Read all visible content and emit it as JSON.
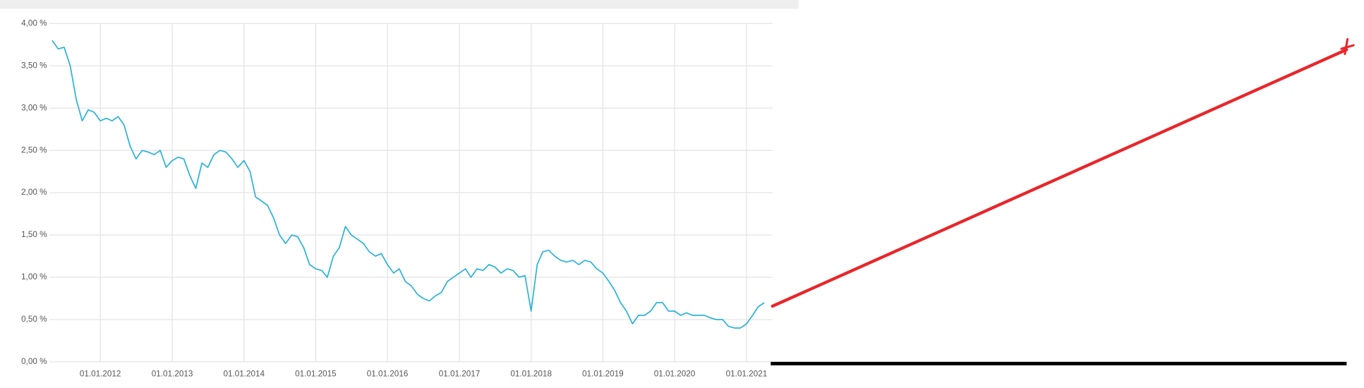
{
  "chart_data": {
    "type": "line",
    "x": [
      "2011-05-01",
      "2011-06-01",
      "2011-07-01",
      "2011-08-01",
      "2011-09-01",
      "2011-10-01",
      "2011-11-01",
      "2011-12-01",
      "2012-01-01",
      "2012-02-01",
      "2012-03-01",
      "2012-04-01",
      "2012-05-01",
      "2012-06-01",
      "2012-07-01",
      "2012-08-01",
      "2012-09-01",
      "2012-10-01",
      "2012-11-01",
      "2012-12-01",
      "2013-01-01",
      "2013-02-01",
      "2013-03-01",
      "2013-04-01",
      "2013-05-01",
      "2013-06-01",
      "2013-07-01",
      "2013-08-01",
      "2013-09-01",
      "2013-10-01",
      "2013-11-01",
      "2013-12-01",
      "2014-01-01",
      "2014-02-01",
      "2014-03-01",
      "2014-04-01",
      "2014-05-01",
      "2014-06-01",
      "2014-07-01",
      "2014-08-01",
      "2014-09-01",
      "2014-10-01",
      "2014-11-01",
      "2014-12-01",
      "2015-01-01",
      "2015-02-01",
      "2015-03-01",
      "2015-04-01",
      "2015-05-01",
      "2015-06-01",
      "2015-07-01",
      "2015-08-01",
      "2015-09-01",
      "2015-10-01",
      "2015-11-01",
      "2015-12-01",
      "2016-01-01",
      "2016-02-01",
      "2016-03-01",
      "2016-04-01",
      "2016-05-01",
      "2016-06-01",
      "2016-07-01",
      "2016-08-01",
      "2016-09-01",
      "2016-10-01",
      "2016-11-01",
      "2016-12-01",
      "2017-01-01",
      "2017-02-01",
      "2017-03-01",
      "2017-04-01",
      "2017-05-01",
      "2017-06-01",
      "2017-07-01",
      "2017-08-01",
      "2017-09-01",
      "2017-10-01",
      "2017-11-01",
      "2017-12-01",
      "2018-01-01",
      "2018-02-01",
      "2018-03-01",
      "2018-04-01",
      "2018-05-01",
      "2018-06-01",
      "2018-07-01",
      "2018-08-01",
      "2018-09-01",
      "2018-10-01",
      "2018-11-01",
      "2018-12-01",
      "2019-01-01",
      "2019-02-01",
      "2019-03-01",
      "2019-04-01",
      "2019-05-01",
      "2019-06-01",
      "2019-07-01",
      "2019-08-01",
      "2019-09-01",
      "2019-10-01",
      "2019-11-01",
      "2019-12-01",
      "2020-01-01",
      "2020-02-01",
      "2020-03-01",
      "2020-04-01",
      "2020-05-01",
      "2020-06-01",
      "2020-07-01",
      "2020-08-01",
      "2020-09-01",
      "2020-10-01",
      "2020-11-01",
      "2020-12-01",
      "2021-01-01",
      "2021-02-01",
      "2021-03-01",
      "2021-04-01"
    ],
    "series": [
      {
        "color": "#2bb3d9",
        "values": [
          3.8,
          3.7,
          3.72,
          3.5,
          3.1,
          2.85,
          2.98,
          2.95,
          2.85,
          2.88,
          2.85,
          2.9,
          2.8,
          2.55,
          2.4,
          2.5,
          2.48,
          2.45,
          2.5,
          2.3,
          2.38,
          2.42,
          2.4,
          2.2,
          2.05,
          2.35,
          2.3,
          2.45,
          2.5,
          2.48,
          2.4,
          2.3,
          2.38,
          2.25,
          1.95,
          1.9,
          1.85,
          1.7,
          1.5,
          1.4,
          1.5,
          1.48,
          1.35,
          1.15,
          1.1,
          1.08,
          1.0,
          1.25,
          1.35,
          1.6,
          1.5,
          1.45,
          1.4,
          1.3,
          1.25,
          1.28,
          1.15,
          1.05,
          1.1,
          0.95,
          0.9,
          0.8,
          0.75,
          0.72,
          0.78,
          0.82,
          0.95,
          1.0,
          1.05,
          1.1,
          1.0,
          1.1,
          1.08,
          1.15,
          1.12,
          1.05,
          1.1,
          1.08,
          1.0,
          1.02,
          0.6,
          1.15,
          1.3,
          1.32,
          1.25,
          1.2,
          1.18,
          1.2,
          1.15,
          1.2,
          1.18,
          1.1,
          1.05,
          0.95,
          0.85,
          0.7,
          0.6,
          0.45,
          0.55,
          0.55,
          0.6,
          0.7,
          0.7,
          0.6,
          0.6,
          0.55,
          0.58,
          0.55,
          0.55,
          0.55,
          0.52,
          0.5,
          0.5,
          0.42,
          0.4,
          0.4,
          0.45,
          0.55,
          0.65,
          0.7
        ]
      }
    ],
    "xlim": [
      "2011-04-18",
      "2021-05-13"
    ],
    "xticks": [
      {
        "value": "2012-01-01",
        "label": "01.01.2012"
      },
      {
        "value": "2013-01-01",
        "label": "01.01.2013"
      },
      {
        "value": "2014-01-01",
        "label": "01.01.2014"
      },
      {
        "value": "2015-01-01",
        "label": "01.01.2015"
      },
      {
        "value": "2016-01-01",
        "label": "01.01.2016"
      },
      {
        "value": "2017-01-01",
        "label": "01.01.2017"
      },
      {
        "value": "2018-01-01",
        "label": "01.01.2018"
      },
      {
        "value": "2019-01-01",
        "label": "01.01.2019"
      },
      {
        "value": "2020-01-01",
        "label": "01.01.2020"
      },
      {
        "value": "2021-01-01",
        "label": "01.01.2021"
      }
    ],
    "ylim": [
      0,
      4
    ],
    "yticks": [
      {
        "value": 0,
        "label": "0,00 %"
      },
      {
        "value": 0.5,
        "label": "0,50 %"
      },
      {
        "value": 1,
        "label": "1,00 %"
      },
      {
        "value": 1.5,
        "label": "1,50 %"
      },
      {
        "value": 2,
        "label": "2,00 %"
      },
      {
        "value": 2.5,
        "label": "2,50 %"
      },
      {
        "value": 3,
        "label": "3,00 %"
      },
      {
        "value": 3.5,
        "label": "3,50 %"
      },
      {
        "value": 4,
        "label": "4,00 %"
      }
    ],
    "grid": true
  }
}
